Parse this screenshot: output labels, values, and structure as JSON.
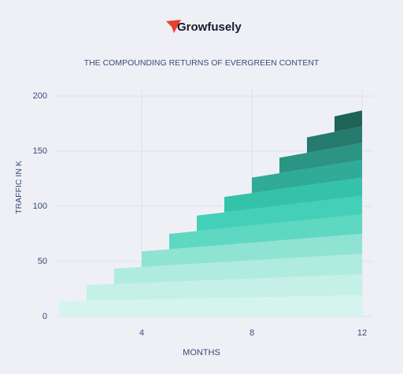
{
  "brand": "Growfusely",
  "chart_data": {
    "type": "stacked-step-area",
    "title": "THE COMPOUNDING RETURNS OF EVERGREEN CONTENT",
    "x_label": "MONTHS",
    "y_label": "TRAFFIC IN K",
    "x": [
      1,
      2,
      3,
      4,
      5,
      6,
      7,
      8,
      9,
      10,
      11,
      12
    ],
    "xlim": [
      0.9,
      12.4
    ],
    "xticks": [
      4,
      8,
      12
    ],
    "ylim": [
      0,
      200
    ],
    "yticks": [
      0,
      50,
      100,
      150,
      200
    ],
    "grid": true,
    "series": [
      {
        "color": "#d6f4ee",
        "values": [
          14,
          14.5,
          15,
          15.5,
          16,
          16.5,
          17,
          17.5,
          18,
          18.5,
          19,
          19.5
        ]
      },
      {
        "color": "#c4f0e6",
        "values": [
          null,
          14,
          14.5,
          15,
          15.5,
          16,
          16.5,
          17,
          17.5,
          18,
          18.5,
          19
        ]
      },
      {
        "color": "#b0ebdf",
        "values": [
          null,
          null,
          14,
          14.5,
          15,
          15.5,
          16,
          16.5,
          17,
          17.5,
          18,
          18.5
        ]
      },
      {
        "color": "#8fe3d3",
        "values": [
          null,
          null,
          null,
          14,
          14.5,
          15,
          15.5,
          16,
          16.5,
          17,
          17.5,
          18
        ]
      },
      {
        "color": "#5fd8c2",
        "values": [
          null,
          null,
          null,
          null,
          14,
          14.5,
          15,
          15.5,
          16,
          16.5,
          17,
          17.5
        ]
      },
      {
        "color": "#44d0b8",
        "values": [
          null,
          null,
          null,
          null,
          null,
          14,
          14.5,
          15,
          15.5,
          16,
          16.5,
          17
        ]
      },
      {
        "color": "#35c2aa",
        "values": [
          null,
          null,
          null,
          null,
          null,
          null,
          14,
          14.5,
          15,
          15.5,
          16,
          16.5
        ]
      },
      {
        "color": "#2fab97",
        "values": [
          null,
          null,
          null,
          null,
          null,
          null,
          null,
          14,
          14.5,
          15,
          15.5,
          16
        ]
      },
      {
        "color": "#2b9483",
        "values": [
          null,
          null,
          null,
          null,
          null,
          null,
          null,
          null,
          14,
          14.5,
          15,
          15.5
        ]
      },
      {
        "color": "#257b6d",
        "values": [
          null,
          null,
          null,
          null,
          null,
          null,
          null,
          null,
          null,
          14,
          14.5,
          15
        ]
      },
      {
        "color": "#1d6356",
        "values": [
          null,
          null,
          null,
          null,
          null,
          null,
          null,
          null,
          null,
          null,
          14,
          14.5
        ]
      }
    ]
  }
}
